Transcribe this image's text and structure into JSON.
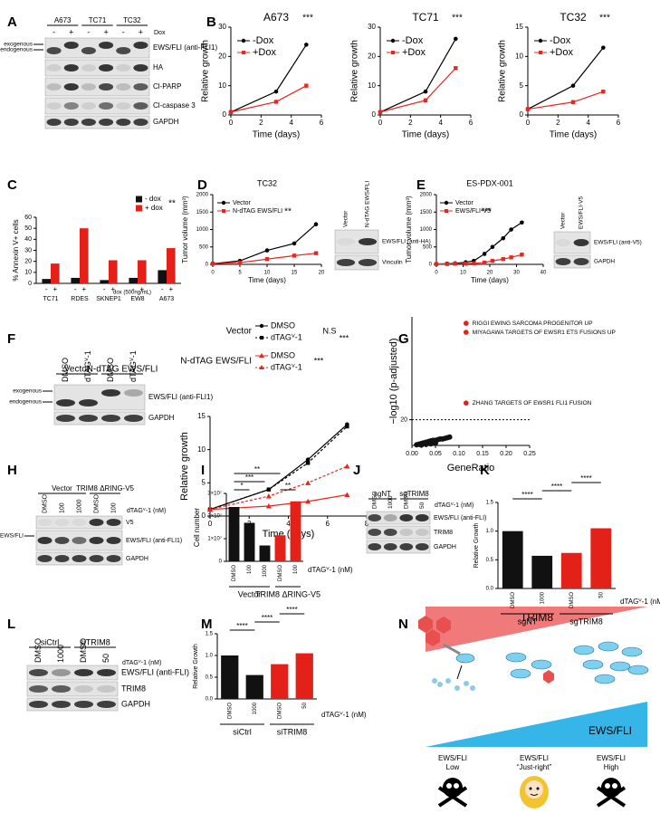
{
  "panel_labels": [
    "A",
    "B",
    "C",
    "D",
    "E",
    "F",
    "G",
    "H",
    "I",
    "J",
    "K",
    "L",
    "M",
    "N"
  ],
  "chart_data": [
    {
      "type": "line",
      "title": "A673",
      "x": [
        0,
        3,
        5
      ],
      "xlim": [
        0,
        6
      ],
      "xticks": [
        0,
        2,
        4,
        6
      ],
      "ylim": [
        0,
        30
      ],
      "yticks": [
        0,
        10,
        20,
        30
      ],
      "x_label": "Time (days)",
      "y_label": "Relative growth",
      "annotations": [
        "***"
      ],
      "series": [
        {
          "name": "-Dox",
          "color": "#000000",
          "marker": "circle",
          "values": [
            1,
            8,
            24
          ]
        },
        {
          "name": "+Dox",
          "color": "#e8251f",
          "marker": "square",
          "values": [
            1,
            4.5,
            10
          ]
        }
      ]
    },
    {
      "type": "line",
      "title": "TC71",
      "x": [
        0,
        3,
        5
      ],
      "xlim": [
        0,
        6
      ],
      "xticks": [
        0,
        2,
        4,
        6
      ],
      "ylim": [
        0,
        30
      ],
      "yticks": [
        0,
        10,
        20,
        30
      ],
      "x_label": "Time (days)",
      "y_label": "Relative growth",
      "annotations": [
        "***"
      ],
      "series": [
        {
          "name": "-Dox",
          "color": "#000000",
          "marker": "circle",
          "values": [
            1,
            8,
            26
          ]
        },
        {
          "name": "+Dox",
          "color": "#e8251f",
          "marker": "square",
          "values": [
            1,
            5,
            16
          ]
        }
      ]
    },
    {
      "type": "line",
      "title": "TC32",
      "x": [
        0,
        3,
        5
      ],
      "xlim": [
        0,
        6
      ],
      "xticks": [
        0,
        2,
        4,
        6
      ],
      "ylim": [
        0,
        15
      ],
      "yticks": [
        0,
        5,
        10,
        15
      ],
      "x_label": "Time (days)",
      "y_label": "Relative growth",
      "annotations": [
        "***"
      ],
      "series": [
        {
          "name": "-Dox",
          "color": "#000000",
          "marker": "circle",
          "values": [
            1,
            5,
            11.5
          ]
        },
        {
          "name": "+Dox",
          "color": "#e8251f",
          "marker": "square",
          "values": [
            1,
            2.2,
            4
          ]
        }
      ]
    },
    {
      "type": "bar",
      "categories": [
        "TC71",
        "RDES",
        "SKNEP1",
        "EW8",
        "A673"
      ],
      "ylim": [
        0,
        60
      ],
      "yticks": [
        0,
        10,
        20,
        30,
        40,
        50,
        60
      ],
      "y_label": "% Annexin V+ cells",
      "annotations": [
        "**"
      ],
      "x_note": "dox (500ng/mL)",
      "lane_signs": [
        "-",
        "+",
        "-",
        "+",
        "-",
        "+",
        "-",
        "+",
        "-",
        "+"
      ],
      "series": [
        {
          "name": "- dox",
          "color": "#111111",
          "values": [
            4,
            5,
            3,
            5,
            12
          ]
        },
        {
          "name": "+ dox",
          "color": "#e32119",
          "values": [
            18,
            50,
            21,
            21,
            32
          ]
        }
      ]
    },
    {
      "type": "line",
      "title": "TC32",
      "x": [
        0,
        5,
        10,
        15,
        19
      ],
      "xlim": [
        0,
        20
      ],
      "xticks": [
        0,
        5,
        10,
        15,
        20
      ],
      "ylim": [
        0,
        2000
      ],
      "yticks": [
        0,
        500,
        1000,
        1500,
        2000
      ],
      "x_label": "Time (days)",
      "y_label": "Tumor volume (mm³)",
      "annotations": [
        "**"
      ],
      "series": [
        {
          "name": "Vector",
          "color": "#000000",
          "marker": "circle",
          "values": [
            20,
            100,
            400,
            600,
            1150
          ]
        },
        {
          "name": "N-dTAG EWS/FLI",
          "color": "#e8251f",
          "marker": "square",
          "values": [
            20,
            50,
            150,
            250,
            320
          ]
        }
      ]
    },
    {
      "type": "line",
      "title": "ES-PDX-001",
      "x": [
        0,
        4,
        7,
        11,
        14,
        18,
        21,
        25,
        28,
        32
      ],
      "xlim": [
        0,
        40
      ],
      "xticks": [
        0,
        10,
        20,
        30,
        40
      ],
      "ylim": [
        0,
        2000
      ],
      "yticks": [
        0,
        500,
        1000,
        1500,
        2000
      ],
      "x_label": "Time (days)",
      "y_label": "Tumor volume (mm³)",
      "annotations": [
        "***"
      ],
      "series": [
        {
          "name": "Vector",
          "color": "#000000",
          "marker": "circle",
          "values": [
            10,
            20,
            30,
            60,
            100,
            300,
            500,
            750,
            1000,
            1200
          ]
        },
        {
          "name": "EWS/FLI-V5",
          "color": "#e8251f",
          "marker": "square",
          "values": [
            10,
            10,
            20,
            20,
            30,
            50,
            100,
            150,
            200,
            280
          ]
        }
      ]
    },
    {
      "type": "line",
      "x": [
        0,
        3,
        5,
        7
      ],
      "xlim": [
        0,
        8
      ],
      "xticks": [
        0,
        2,
        4,
        6,
        8
      ],
      "ylim": [
        0,
        15
      ],
      "yticks": [
        0,
        5,
        10,
        15
      ],
      "x_label": "Time (days)",
      "y_label": "Relative growth",
      "legend_groups": [
        "Vector",
        "N-dTAG EWS/FLI"
      ],
      "annotations": [
        "N.S",
        "***",
        "***"
      ],
      "series": [
        {
          "name": "DMSO",
          "color": "#000000",
          "marker": "circle",
          "values": [
            1,
            4,
            8.5,
            13.8
          ]
        },
        {
          "name": "dTAGⱽ-1",
          "color": "#000000",
          "marker": "square",
          "dashed": true,
          "values": [
            1,
            4,
            8,
            13.5
          ]
        },
        {
          "name": "DMSO",
          "color": "#e8251f",
          "marker": "triangle",
          "values": [
            1,
            1.5,
            2.2,
            3.2
          ]
        },
        {
          "name": "dTAGⱽ-1",
          "color": "#e8251f",
          "marker": "triangle",
          "dashed": true,
          "values": [
            1,
            3,
            5,
            7.5
          ]
        }
      ]
    },
    {
      "type": "scatter",
      "xlim": [
        0,
        0.25
      ],
      "ylim": [
        0,
        100
      ],
      "yticks": [
        20
      ],
      "xticks": [
        {
          "value": 0,
          "label": "0.00"
        },
        0.05,
        {
          "value": 0.1,
          "label": "0.10"
        },
        0.15,
        {
          "value": 0.2,
          "label": "0.20"
        },
        0.25
      ],
      "x_label": "GeneRatio",
      "y_label": "−log10 (p-adjusted)",
      "reference_line": 20,
      "color": "#111111",
      "highlight_color": "#e32119",
      "points": {
        "x": [
          0.01,
          0.015,
          0.02,
          0.025,
          0.03,
          0.035,
          0.04,
          0.045,
          0.05,
          0.055,
          0.06,
          0.065,
          0.07,
          0.075,
          0.08,
          0.02,
          0.03,
          0.04,
          0.05
        ],
        "y": [
          0.5,
          1,
          1.5,
          2,
          2.5,
          3,
          3.5,
          4,
          4,
          4.5,
          5,
          5,
          5.5,
          6,
          6.5,
          0.3,
          0.8,
          1.2,
          1.8
        ]
      },
      "highlights": [
        {
          "label": "RIGGI EWING SARCOMA PROGENITOR UP",
          "x": 0.115,
          "y": 95
        },
        {
          "label": "MIYAGAWA TARGETS OF EWSR1 ETS FUSIONS UP",
          "x": 0.115,
          "y": 88
        },
        {
          "label": "ZHANG TARGETS OF EWSR1 FLI1 FUSION",
          "x": 0.115,
          "y": 33
        }
      ]
    },
    {
      "type": "bar",
      "categories": [
        "DMSO",
        "100",
        "1000",
        "DMSO",
        "100"
      ],
      "colors": [
        "#111111",
        "#111111",
        "#111111",
        "#e32119",
        "#e32119"
      ],
      "values": [
        24000000,
        17000000,
        7000000,
        11500000,
        26500000
      ],
      "ylim": [
        0,
        30000000
      ],
      "yticks": [
        0,
        {
          "value": 10000000,
          "label": "1×10⁷"
        },
        {
          "value": 20000000,
          "label": "2×10⁷"
        },
        {
          "value": 30000000,
          "label": "3×10⁷"
        }
      ],
      "y_label": "Cell number",
      "x_note": "dTAGⱽ-1 (nM)",
      "groups": [
        "Vector",
        "TRIM8 ΔRING-V5"
      ],
      "annotations": [
        "*",
        "***",
        "**",
        "**"
      ]
    },
    {
      "type": "bar",
      "categories": [
        "DMSO",
        "1000",
        "DMSO",
        "50"
      ],
      "colors": [
        "#111111",
        "#111111",
        "#e32119",
        "#e32119"
      ],
      "values": [
        1.0,
        0.57,
        0.62,
        1.05
      ],
      "ylim": [
        0,
        1.5
      ],
      "yticks": [
        {
          "value": 0,
          "label": "0.0"
        },
        0.5,
        {
          "value": 1,
          "label": "1.0"
        },
        1.5
      ],
      "y_label": "Relative Growth",
      "x_note": "dTAGⱽ-1 (nM)",
      "groups": [
        "sgNT",
        "sgTRIM8"
      ],
      "annotations": [
        "****",
        "****",
        "****"
      ]
    },
    {
      "type": "bar",
      "categories": [
        "DMSO",
        "1000",
        "DMSO",
        "50"
      ],
      "colors": [
        "#111111",
        "#111111",
        "#e32119",
        "#e32119"
      ],
      "values": [
        1.0,
        0.55,
        0.8,
        1.05
      ],
      "ylim": [
        0,
        1.5
      ],
      "yticks": [
        {
          "value": 0,
          "label": "0.0"
        },
        0.5,
        {
          "value": 1,
          "label": "1.0"
        },
        1.5
      ],
      "y_label": "Relative Growth",
      "x_note": "dTAGⱽ-1 (nM)",
      "groups": [
        "siCtrl",
        "siTRIM8"
      ],
      "annotations": [
        "****",
        "****",
        "****"
      ]
    }
  ],
  "blots": {
    "A": {
      "groups": [
        "A673",
        "TC71",
        "TC32"
      ],
      "unit": "Dox",
      "lanes": [
        "-",
        "+",
        "-",
        "+",
        "-",
        "+"
      ],
      "rows": [
        "EWS/FLI (anti-FLI1)",
        "HA",
        "Cl-PARP",
        "Cl-caspase 3",
        "GAPDH"
      ],
      "arrows": [
        "exogenous",
        "endogenous"
      ]
    },
    "D": {
      "lanes": [
        "Vector",
        "N-dTAG EWS/FLI"
      ],
      "rows": [
        "EWS/FLI (anti-HA)",
        "Vinculin"
      ]
    },
    "E": {
      "lanes": [
        "Vector",
        "EWS/FLI-V5"
      ],
      "rows": [
        "EWS/FLI (anti-V5)",
        "GAPDH"
      ]
    },
    "F": {
      "groups": [
        "Vector",
        "N-dTAG EWS/FLI"
      ],
      "lanes": [
        "DMSO",
        "dTAGⱽ-1",
        "DMSO",
        "dTAGⱽ-1"
      ],
      "rows": [
        "EWS/FLI (anti-FLI1)",
        "GAPDH"
      ],
      "arrows": [
        "exogenous",
        "endogenous"
      ]
    },
    "H": {
      "groups": [
        "Vector",
        "TRIM8 ΔRING-V5"
      ],
      "unit": "dTAGⱽ-1 (nM)",
      "lanes": [
        "DMSO",
        "100",
        "1000",
        "DMSO",
        "100"
      ],
      "rows": [
        "V5",
        "EWS/FLI (anti-FLI1)",
        "GAPDH"
      ],
      "arrows": [
        "N-dTAG EWS/FLI"
      ]
    },
    "J": {
      "groups": [
        "sgNT",
        "sgTRIM8"
      ],
      "unit": "dTAGⱽ-1 (nM)",
      "lanes": [
        "DMSO",
        "1000",
        "DMSO",
        "50"
      ],
      "rows": [
        "EWS/FLI (anti-FLI)",
        "TRIM8",
        "GAPDH"
      ]
    },
    "L": {
      "groups": [
        "siCtrl",
        "siTRIM8"
      ],
      "unit": "dTAGⱽ-1 (nM)",
      "lanes": [
        "DMSO",
        "1000",
        "DMSO",
        "50"
      ],
      "rows": [
        "EWS/FLI (anti-FLI)",
        "TRIM8",
        "GAPDH"
      ]
    }
  },
  "diagram": {
    "trim8": "TRIM8",
    "ews_fli": "EWS/FLI",
    "levels": [
      [
        "EWS/FLI",
        "Low"
      ],
      [
        "EWS/FLI",
        "“Just-right”"
      ],
      [
        "EWS/FLI",
        "High"
      ]
    ]
  }
}
